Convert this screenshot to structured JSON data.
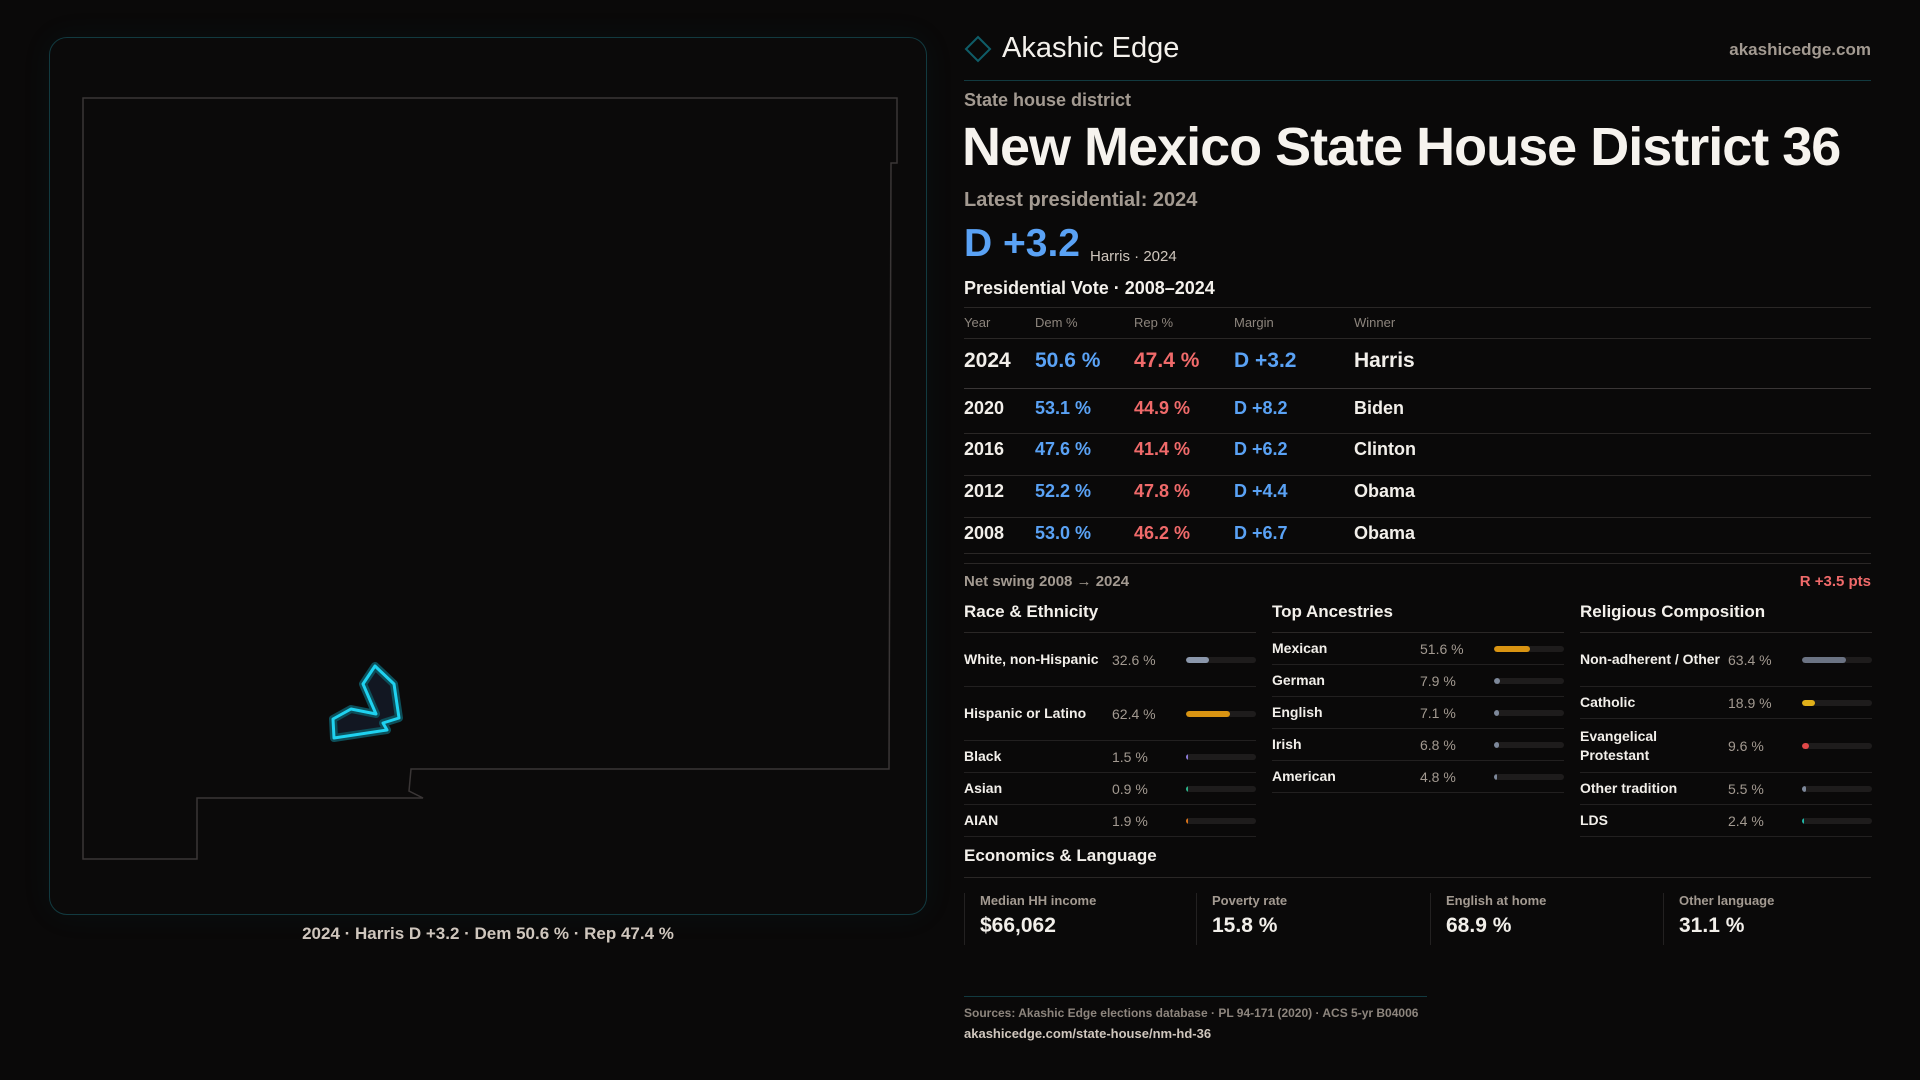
{
  "brand": {
    "name": "Akashic Edge",
    "site": "akashicedge.com",
    "accent": "#1fd2f0"
  },
  "header": {
    "kind": "State house district",
    "title": "New Mexico State House District 36",
    "latest": "Latest presidential: 2024",
    "margin": "D +3.2",
    "margin_sub": "Harris · 2024"
  },
  "map": {
    "caption": "2024 · Harris D +3.2 · Dem 50.6 % · Rep 47.4 %",
    "highlight_color": "#1fd2f0"
  },
  "presidential": {
    "title": "Presidential Vote · 2008–2024",
    "headers": [
      "Year",
      "Dem %",
      "Rep %",
      "Margin",
      "Winner"
    ],
    "rows": [
      {
        "year": "2024",
        "dem": "50.6 %",
        "rep": "47.4 %",
        "margin": "D +3.2",
        "winner": "Harris"
      },
      {
        "year": "2020",
        "dem": "53.1 %",
        "rep": "44.9 %",
        "margin": "D +8.2",
        "winner": "Biden"
      },
      {
        "year": "2016",
        "dem": "47.6 %",
        "rep": "41.4 %",
        "margin": "D +6.2",
        "winner": "Clinton"
      },
      {
        "year": "2012",
        "dem": "52.2 %",
        "rep": "47.8 %",
        "margin": "D +4.4",
        "winner": "Obama"
      },
      {
        "year": "2008",
        "dem": "53.0 %",
        "rep": "46.2 %",
        "margin": "D +6.7",
        "winner": "Obama"
      }
    ],
    "swing_label": "Net swing 2008 → 2024",
    "swing_value": "R +3.5 pts"
  },
  "demographics": [
    {
      "title": "Race & Ethnicity",
      "items": [
        {
          "label": "White, non-Hispanic",
          "value": "32.6 %",
          "pct": 32.6,
          "color": "#8b97ab"
        },
        {
          "label": "Hispanic or Latino",
          "value": "62.4 %",
          "pct": 62.4,
          "color": "#d99412"
        },
        {
          "label": "Black",
          "value": "1.5 %",
          "pct": 1.5,
          "color": "#8c7bd8"
        },
        {
          "label": "Asian",
          "value": "0.9 %",
          "pct": 0.9,
          "color": "#2bb58a"
        },
        {
          "label": "AIAN",
          "value": "1.9 %",
          "pct": 1.9,
          "color": "#d9731a"
        }
      ]
    },
    {
      "title": "Top Ancestries",
      "items": [
        {
          "label": "Mexican",
          "value": "51.6 %",
          "pct": 51.6,
          "color": "#d99412"
        },
        {
          "label": "German",
          "value": "7.9 %",
          "pct": 7.9,
          "color": "#7d889a"
        },
        {
          "label": "English",
          "value": "7.1 %",
          "pct": 7.1,
          "color": "#7d889a"
        },
        {
          "label": "Irish",
          "value": "6.8 %",
          "pct": 6.8,
          "color": "#7d889a"
        },
        {
          "label": "American",
          "value": "4.8 %",
          "pct": 4.8,
          "color": "#7d889a"
        }
      ]
    },
    {
      "title": "Religious Composition",
      "items": [
        {
          "label": "Non-adherent / Other",
          "value": "63.4 %",
          "pct": 63.4,
          "color": "#6b7383"
        },
        {
          "label": "Catholic",
          "value": "18.9 %",
          "pct": 18.9,
          "color": "#e0b01a"
        },
        {
          "label": "Evangelical Protestant",
          "value": "9.6 %",
          "pct": 9.6,
          "color": "#e04848"
        },
        {
          "label": "Other tradition",
          "value": "5.5 %",
          "pct": 5.5,
          "color": "#7d889a"
        },
        {
          "label": "LDS",
          "value": "2.4 %",
          "pct": 2.4,
          "color": "#22b8a8"
        }
      ]
    }
  ],
  "economics": {
    "title": "Economics & Language",
    "cards": [
      {
        "label": "Median HH income",
        "value": "$66,062"
      },
      {
        "label": "Poverty rate",
        "value": "15.8 %"
      },
      {
        "label": "English at home",
        "value": "68.9 %"
      },
      {
        "label": "Other language",
        "value": "31.1 %"
      }
    ]
  },
  "footer": {
    "sources": "Sources: Akashic Edge elections database · PL 94-171 (2020) · ACS 5-yr B04006",
    "url": "akashicedge.com/state-house/nm-hd-36"
  }
}
